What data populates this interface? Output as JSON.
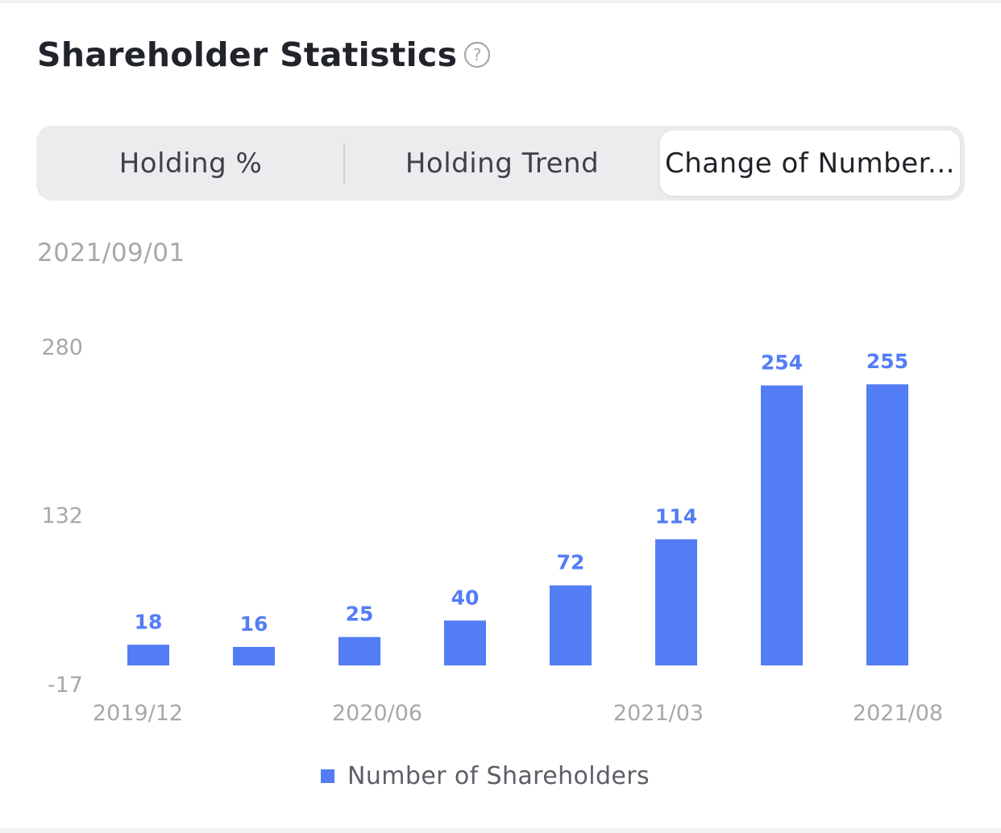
{
  "header": {
    "title": "Shareholder Statistics",
    "help_icon": "question-circle-icon"
  },
  "tabs": [
    {
      "label": "Holding %",
      "active": false
    },
    {
      "label": "Holding Trend",
      "active": false
    },
    {
      "label": "Change of Number...",
      "active": true
    }
  ],
  "date_label": "2021/09/01",
  "colors": {
    "bar": "#537df5",
    "value_label": "#537df5",
    "axis_text": "#a6a8ae"
  },
  "chart_data": {
    "type": "bar",
    "categories": [
      "2019/12",
      "",
      "2020/06",
      "",
      "",
      "2021/03",
      "",
      "2021/08"
    ],
    "x_tick_labels": [
      "2019/12",
      "2020/06",
      "2021/03",
      "2021/08"
    ],
    "series": [
      {
        "name": "Number of Shareholders",
        "values": [
          18,
          16,
          25,
          40,
          72,
          114,
          254,
          255
        ]
      }
    ],
    "data_labels": [
      "18",
      "16",
      "25",
      "40",
      "72",
      "114",
      "254",
      "255"
    ],
    "y_ticks": [
      "280",
      "132",
      "-17"
    ],
    "ylim": [
      -17,
      280
    ],
    "legend_position": "bottom",
    "grid": false
  }
}
